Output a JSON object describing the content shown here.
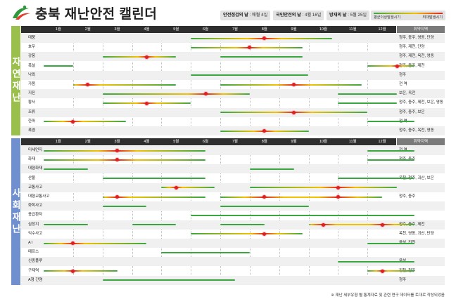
{
  "title": "충북 재난안전 캘린더",
  "info": [
    {
      "label": "안전점검의 날",
      "value": "매월 4일"
    },
    {
      "label": "국민안전의 날",
      "value": "4월 16일"
    },
    {
      "label": "방재의 날",
      "value": "5월 25일"
    }
  ],
  "legend": {
    "left": "평균이상발생시기",
    "right": "최대발생시기"
  },
  "colors": {
    "green": "#3aa640",
    "yellow": "#f2c200",
    "red": "#e02020",
    "nature": "#9bbf4d",
    "social": "#6f8fcf"
  },
  "months": [
    "1월",
    "2월",
    "3월",
    "4월",
    "5월",
    "6월",
    "7월",
    "8월",
    "9월",
    "10월",
    "11월",
    "12월"
  ],
  "region_header": "취약지역",
  "sections": [
    {
      "label": "자연재난",
      "rows": [
        {
          "name": "태풍",
          "region": "청주, 충주, 영동, 단양",
          "spans": [
            [
              6,
              9.8
            ]
          ],
          "peaks": [
            8
          ]
        },
        {
          "name": "호우",
          "region": "청주, 제천, 단양",
          "spans": [
            [
              6,
              8.8
            ]
          ],
          "peaks": [
            7.5
          ]
        },
        {
          "name": "강풍",
          "region": "청주, 제천, 옥천, 영동",
          "spans": [
            [
              3,
              4.5
            ],
            [
              7,
              8.8
            ]
          ],
          "peaks": [
            4
          ]
        },
        {
          "name": "폭설",
          "region": "청주, 충주, 제천",
          "spans": [
            [
              1,
              1
            ],
            [
              12,
              12.6
            ]
          ],
          "peaks": [
            12.5
          ]
        },
        {
          "name": "낙뢰",
          "region": "청주",
          "spans": [
            [
              6,
              9
            ]
          ],
          "peaks": []
        },
        {
          "name": "가뭄",
          "region": "전 역",
          "spans": [
            [
              2,
              4.5
            ],
            [
              7,
              10.8
            ]
          ],
          "peaks": [
            2
          ],
          "extra_peaks": [
            9
          ]
        },
        {
          "name": "지진",
          "region": "보은, 옥천",
          "spans": [
            [
              3,
              7
            ],
            [
              11,
              12
            ]
          ],
          "peaks": [
            6
          ]
        },
        {
          "name": "황사",
          "region": "청주, 충주, 제천, 보은, 영동",
          "spans": [
            [
              3,
              5
            ],
            [
              11,
              12
            ]
          ],
          "peaks": [
            4
          ]
        },
        {
          "name": "조류",
          "region": "청주, 충주, 보은",
          "spans": [
            [
              7,
              11
            ]
          ],
          "peaks": [
            9
          ]
        },
        {
          "name": "한파",
          "region": "전 역",
          "spans": [
            [
              1,
              2.8
            ],
            [
              12,
              12.6
            ]
          ],
          "peaks": [
            1.5
          ]
        },
        {
          "name": "폭염",
          "region": "청주, 충주, 옥천, 영동",
          "spans": [
            [
              7,
              9
            ]
          ],
          "peaks": [
            8
          ]
        }
      ]
    },
    {
      "label": "사회재난",
      "rows": [
        {
          "name": "미세먼지",
          "region": "전 역",
          "spans": [
            [
              1,
              5.5
            ],
            [
              12,
              12.6
            ]
          ],
          "peaks": [
            3
          ]
        },
        {
          "name": "화재",
          "region": "청주, 충주",
          "spans": [
            [
              1,
              5.5
            ],
            [
              12,
              12.6
            ]
          ],
          "peaks": [
            3
          ]
        },
        {
          "name": "대형화재",
          "region": "",
          "spans": [
            [
              1,
              1.5
            ],
            [
              8,
              8.5
            ]
          ],
          "peaks": []
        },
        {
          "name": "산불",
          "region": "옥천, 청주, 괴산, 보은",
          "spans": [
            [
              3,
              5.5
            ],
            [
              11,
              12.6
            ]
          ],
          "peaks": []
        },
        {
          "name": "교통사고",
          "region": "",
          "spans": [
            [
              5,
              5.8
            ],
            [
              8,
              12
            ]
          ],
          "peaks": [
            5
          ],
          "extra_peaks": [
            10.5
          ]
        },
        {
          "name": "대형교통사고",
          "region": "청주, 충주",
          "spans": [
            [
              3,
              5.5
            ],
            [
              7,
              11.5
            ]
          ],
          "peaks": [
            3
          ],
          "extra_peaks": [
            8,
            10.5
          ]
        },
        {
          "name": "화학사고",
          "region": "",
          "spans": [
            [
              3,
              3.5
            ],
            [
              7,
              9
            ]
          ],
          "peaks": []
        },
        {
          "name": "응급환자",
          "region": "",
          "spans": [
            [
              6,
              12.6
            ]
          ],
          "peaks": []
        },
        {
          "name": "심정지",
          "region": "청주, 충주, 제천",
          "spans": [
            [
              1,
              1.5
            ],
            [
              4,
              4.5
            ],
            [
              7,
              7.5
            ],
            [
              10,
              12.6
            ]
          ],
          "peaks": [
            10
          ],
          "extra_peaks": [
            12
          ]
        },
        {
          "name": "익수사고",
          "region": "옥천, 영동, 괴산, 단양",
          "spans": [
            [
              6,
              8.8
            ]
          ],
          "peaks": [
            8
          ]
        },
        {
          "name": "A I",
          "region": "음성, 진천",
          "spans": [
            [
              1,
              3.5
            ],
            [
              12,
              12.6
            ]
          ],
          "peaks": [
            1.5
          ]
        },
        {
          "name": "메르스",
          "region": "",
          "spans": [
            [
              5,
              7
            ]
          ],
          "peaks": []
        },
        {
          "name": "신종플루",
          "region": "음성",
          "spans": [
            [
              11,
              12.6
            ]
          ],
          "peaks": []
        },
        {
          "name": "구제역",
          "region": "진천, 청주",
          "spans": [
            [
              1,
              2.5
            ],
            [
              12,
              12.6
            ]
          ],
          "peaks": [
            1.5
          ],
          "extra_peaks": [
            12
          ]
        },
        {
          "name": "A형 간염",
          "region": "청주",
          "spans": [
            [
              3,
              6.5
            ]
          ],
          "peaks": []
        }
      ]
    }
  ],
  "footnote": "※ 재난 세부유형 별 통계자료 및 관련 연구 데이터를 토대로 작성되었음"
}
